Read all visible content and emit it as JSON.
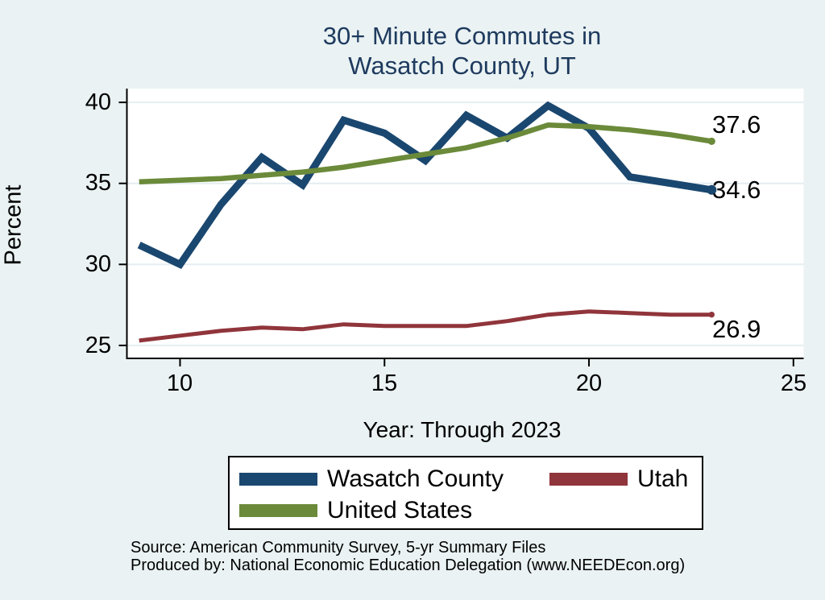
{
  "title": {
    "line1": "30+ Minute Commutes in",
    "line2": "Wasatch County, UT"
  },
  "chart_data": {
    "type": "line",
    "title": "30+ Minute Commutes in Wasatch County, UT",
    "xlabel": "Year: Through 2023",
    "ylabel": "Percent",
    "x": [
      9,
      10,
      11,
      12,
      13,
      14,
      15,
      16,
      17,
      18,
      19,
      20,
      21,
      22,
      23
    ],
    "xticks": [
      10,
      15,
      20,
      25
    ],
    "yticks": [
      25,
      30,
      35,
      40
    ],
    "xlim": [
      8.7,
      25.25
    ],
    "ylim": [
      24.2,
      40.85
    ],
    "grid": "horizontal",
    "legend_position": "bottom",
    "series": [
      {
        "name": "Wasatch County",
        "color": "#1A476F",
        "line_width": 9,
        "values": [
          31.2,
          30.0,
          33.7,
          36.6,
          34.9,
          38.9,
          38.1,
          36.4,
          39.2,
          37.8,
          39.8,
          38.4,
          35.4,
          35.0,
          34.6
        ],
        "end_label": "34.6"
      },
      {
        "name": "Utah",
        "color": "#90353B",
        "line_width": 5,
        "values": [
          25.3,
          25.6,
          25.9,
          26.1,
          26.0,
          26.3,
          26.2,
          26.2,
          26.2,
          26.5,
          26.9,
          27.1,
          27.0,
          26.9,
          26.9
        ],
        "end_label": "26.9"
      },
      {
        "name": "United States",
        "color": "#6B8A3A",
        "line_width": 6.5,
        "values": [
          35.1,
          35.2,
          35.3,
          35.5,
          35.7,
          36.0,
          36.4,
          36.8,
          37.2,
          37.8,
          38.6,
          38.5,
          38.3,
          38.0,
          37.6
        ],
        "end_label": "37.6"
      }
    ]
  },
  "axis_ticks": {
    "y": [
      "40",
      "35",
      "30",
      "25"
    ],
    "x": [
      "10",
      "15",
      "20",
      "25"
    ]
  },
  "source": {
    "line1": "Source: American Community Survey, 5-yr Summary Files",
    "line2": "Produced by: National Economic Education Delegation (www.NEEDEcon.org)"
  },
  "colors": {
    "background": "#EAF2F3",
    "plot_background": "#FFFFFF",
    "title": "#1E3A5E",
    "gridline": "#E4EEF1",
    "axis": "#000000"
  }
}
